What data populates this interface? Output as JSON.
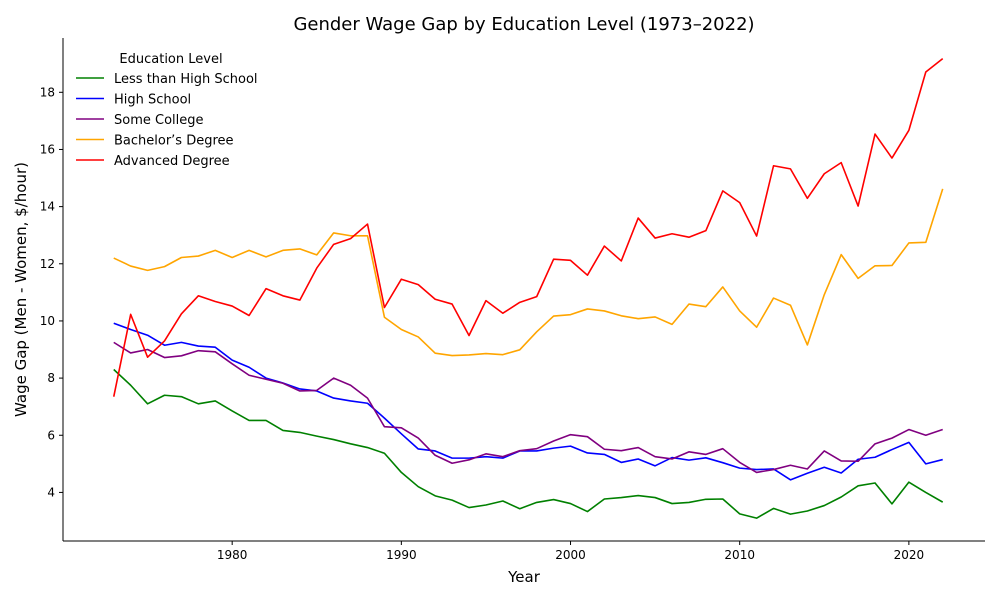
{
  "chart_data": {
    "type": "line",
    "title": "Gender Wage Gap by Education Level (1973–2022)",
    "xlabel": "Year",
    "ylabel": "Wage Gap (Men - Women, $/hour)",
    "xlim": [
      1970,
      2024.5
    ],
    "ylim": [
      2.3,
      19.9
    ],
    "xticks": [
      1980,
      1990,
      2000,
      2010,
      2020
    ],
    "yticks": [
      4,
      6,
      8,
      10,
      12,
      14,
      16,
      18
    ],
    "grid": false,
    "legend": {
      "title": "Education Level",
      "position": "top-left"
    },
    "x": [
      1973,
      1974,
      1975,
      1976,
      1977,
      1978,
      1979,
      1980,
      1981,
      1982,
      1983,
      1984,
      1985,
      1986,
      1987,
      1988,
      1989,
      1990,
      1991,
      1992,
      1993,
      1994,
      1995,
      1996,
      1997,
      1998,
      1999,
      2000,
      2001,
      2002,
      2003,
      2004,
      2005,
      2006,
      2007,
      2008,
      2009,
      2010,
      2011,
      2012,
      2013,
      2014,
      2015,
      2016,
      2017,
      2018,
      2019,
      2020,
      2021,
      2022
    ],
    "series": [
      {
        "name": "Less than High School",
        "color": "#008000",
        "values": [
          8.3,
          7.75,
          7.1,
          7.4,
          7.35,
          7.1,
          7.2,
          6.85,
          6.52,
          6.52,
          6.17,
          6.1,
          5.97,
          5.85,
          5.7,
          5.57,
          5.37,
          4.7,
          4.2,
          3.88,
          3.73,
          3.47,
          3.56,
          3.7,
          3.43,
          3.65,
          3.75,
          3.61,
          3.33,
          3.77,
          3.82,
          3.89,
          3.82,
          3.61,
          3.65,
          3.76,
          3.77,
          3.25,
          3.1,
          3.44,
          3.24,
          3.35,
          3.54,
          3.84,
          4.23,
          4.33,
          3.6,
          4.36,
          4.0,
          3.66
        ]
      },
      {
        "name": "High School",
        "color": "#0000ff",
        "values": [
          9.92,
          9.7,
          9.5,
          9.15,
          9.25,
          9.12,
          9.08,
          8.63,
          8.38,
          8.0,
          7.83,
          7.62,
          7.55,
          7.3,
          7.2,
          7.12,
          6.6,
          6.05,
          5.52,
          5.45,
          5.2,
          5.2,
          5.25,
          5.2,
          5.45,
          5.45,
          5.55,
          5.62,
          5.38,
          5.33,
          5.05,
          5.17,
          4.93,
          5.22,
          5.13,
          5.21,
          5.04,
          4.85,
          4.8,
          4.82,
          4.44,
          4.67,
          4.88,
          4.68,
          5.16,
          5.23,
          5.5,
          5.75,
          5.0,
          5.15
        ]
      },
      {
        "name": "Some College",
        "color": "#800080",
        "values": [
          9.25,
          8.88,
          9.0,
          8.72,
          8.78,
          8.96,
          8.92,
          8.5,
          8.1,
          7.96,
          7.82,
          7.55,
          7.57,
          8.0,
          7.75,
          7.3,
          6.3,
          6.26,
          5.9,
          5.3,
          5.02,
          5.14,
          5.35,
          5.25,
          5.46,
          5.53,
          5.8,
          6.02,
          5.95,
          5.51,
          5.46,
          5.57,
          5.25,
          5.17,
          5.42,
          5.33,
          5.53,
          5.05,
          4.7,
          4.8,
          4.95,
          4.82,
          5.45,
          5.1,
          5.09,
          5.7,
          5.9,
          6.2,
          6.0,
          6.2
        ]
      },
      {
        "name": "Bachelor’s Degree",
        "color": "#ffa500",
        "values": [
          12.2,
          11.92,
          11.77,
          11.9,
          12.22,
          12.27,
          12.47,
          12.22,
          12.47,
          12.24,
          12.47,
          12.52,
          12.31,
          13.08,
          12.98,
          12.98,
          10.13,
          9.7,
          9.44,
          8.87,
          8.79,
          8.81,
          8.86,
          8.82,
          8.99,
          9.62,
          10.17,
          10.22,
          10.42,
          10.35,
          10.18,
          10.08,
          10.14,
          9.88,
          10.59,
          10.5,
          11.19,
          10.35,
          9.78,
          10.8,
          10.55,
          9.16,
          10.92,
          12.32,
          11.49,
          11.93,
          11.94,
          12.73,
          12.75,
          14.62
        ]
      },
      {
        "name": "Advanced Degree",
        "color": "#ff0000",
        "values": [
          7.35,
          10.23,
          8.73,
          9.3,
          10.25,
          10.88,
          10.68,
          10.52,
          10.19,
          11.13,
          10.88,
          10.73,
          11.85,
          12.68,
          12.88,
          13.39,
          10.47,
          11.46,
          11.27,
          10.76,
          10.59,
          9.49,
          10.71,
          10.27,
          10.65,
          10.85,
          12.16,
          12.12,
          11.6,
          12.62,
          12.1,
          13.6,
          12.9,
          13.05,
          12.93,
          13.16,
          14.55,
          14.14,
          12.97,
          15.43,
          15.32,
          14.29,
          15.15,
          15.54,
          14.02,
          16.54,
          15.7,
          16.67,
          18.71,
          19.18
        ]
      }
    ]
  }
}
